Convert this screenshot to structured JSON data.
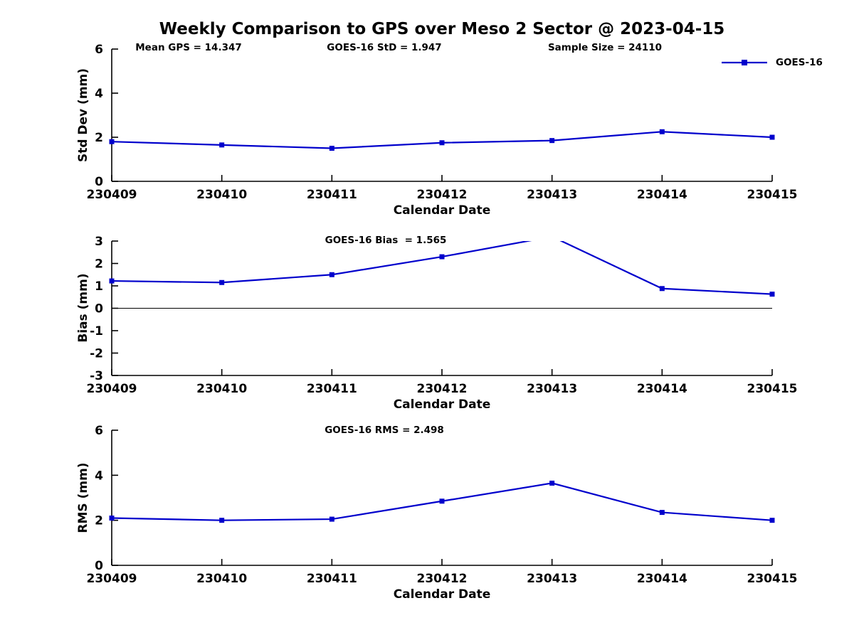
{
  "figure": {
    "title": "Weekly Comparison to GPS over Meso 2 Sector @ 2023-04-15",
    "annotations": [
      {
        "label": "Mean GPS = 14.347"
      },
      {
        "label": "GOES-16 StD = 1.947"
      },
      {
        "label": "Sample Size = 24110"
      }
    ],
    "legend": {
      "label": "GOES-16",
      "color": "#0000cc",
      "marker": "square",
      "position": "top-right"
    }
  },
  "chart_data": [
    {
      "type": "line",
      "subtitle": "",
      "categories": [
        "230409",
        "230410",
        "230411",
        "230412",
        "230413",
        "230414",
        "230415"
      ],
      "series": [
        {
          "name": "GOES-16",
          "values": [
            1.8,
            1.65,
            1.5,
            1.75,
            1.85,
            2.25,
            2.0
          ]
        }
      ],
      "xlabel": "Calendar Date",
      "ylabel": "Std Dev (mm)",
      "ylim": [
        0,
        6
      ],
      "yticks": [
        0,
        2,
        4,
        6
      ],
      "grid": false,
      "zero_line": false,
      "color": "#0000cc",
      "marker": "square"
    },
    {
      "type": "line",
      "subtitle": "GOES-16 Bias  = 1.565",
      "categories": [
        "230409",
        "230410",
        "230411",
        "230412",
        "230413",
        "230414",
        "230415"
      ],
      "series": [
        {
          "name": "GOES-16",
          "values": [
            1.22,
            1.15,
            1.5,
            2.3,
            3.2,
            0.88,
            0.63
          ]
        }
      ],
      "xlabel": "Calendar Date",
      "ylabel": "Bias (mm)",
      "ylim": [
        -3,
        3
      ],
      "yticks": [
        -3,
        -2,
        -1,
        0,
        1,
        2,
        3
      ],
      "grid": false,
      "zero_line": true,
      "clip_note": "value at 230413 exceeds y-axis max and is clipped at 3",
      "color": "#0000cc",
      "marker": "square"
    },
    {
      "type": "line",
      "subtitle": "GOES-16 RMS = 2.498",
      "categories": [
        "230409",
        "230410",
        "230411",
        "230412",
        "230413",
        "230414",
        "230415"
      ],
      "series": [
        {
          "name": "GOES-16",
          "values": [
            2.1,
            2.0,
            2.05,
            2.85,
            3.65,
            2.35,
            2.0
          ]
        }
      ],
      "xlabel": "Calendar Date",
      "ylabel": "RMS (mm)",
      "ylim": [
        0,
        6
      ],
      "yticks": [
        0,
        2,
        4,
        6
      ],
      "grid": false,
      "zero_line": false,
      "color": "#0000cc",
      "marker": "square"
    }
  ]
}
